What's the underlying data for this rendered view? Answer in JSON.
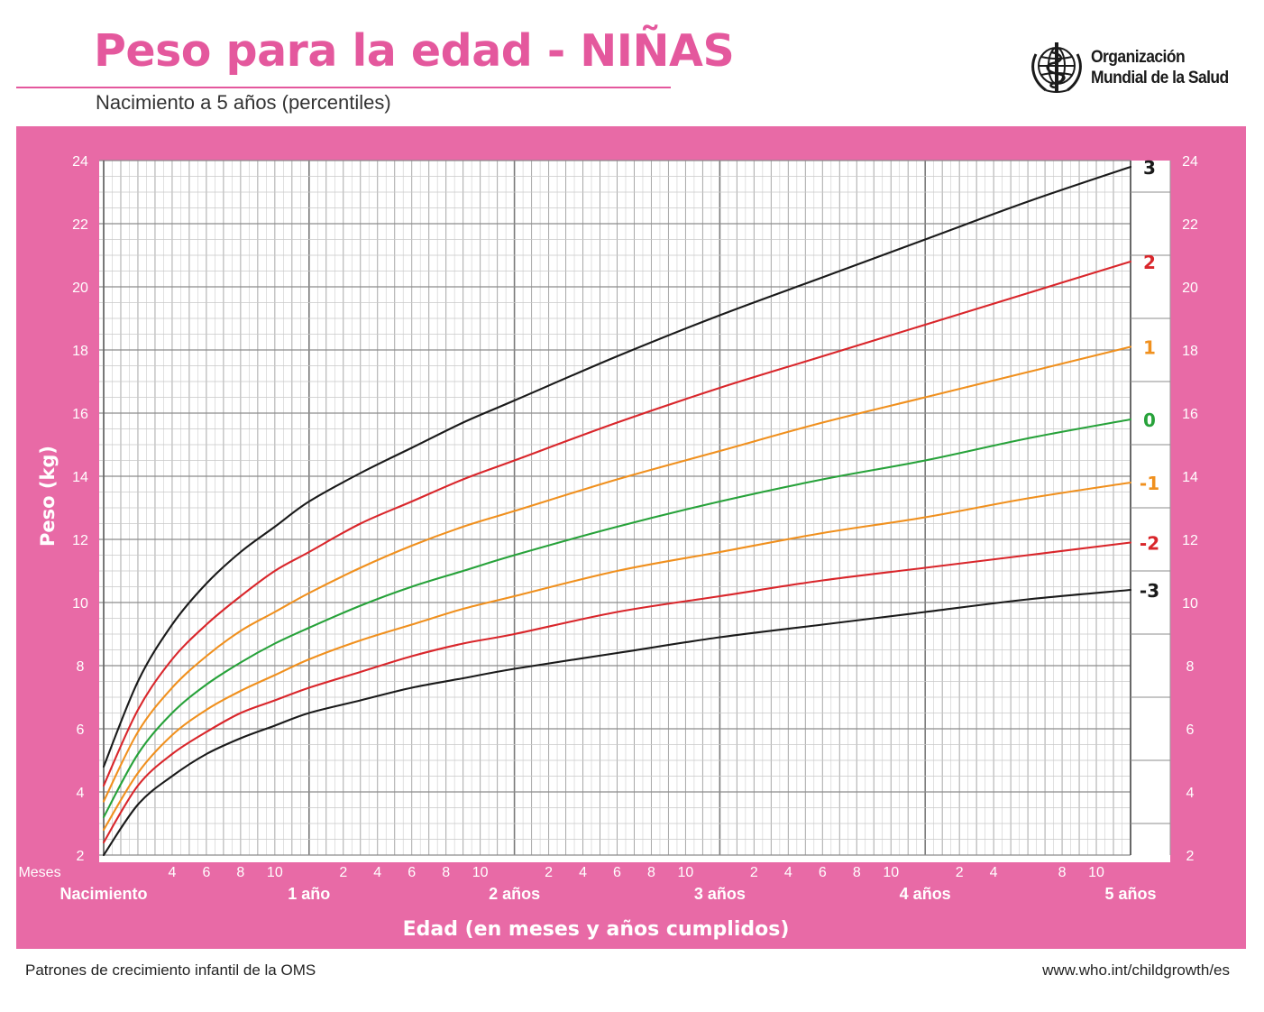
{
  "header": {
    "title": "Peso para la edad - NIÑAS",
    "subtitle": "Nacimiento a 5 años (percentiles)",
    "org_line1": "Organización",
    "org_line2": "Mundial de la Salud",
    "org_logo_icon": "who-emblem-icon"
  },
  "footer": {
    "left": "Patrones de crecimiento infantil de la OMS",
    "right": "www.who.int/childgrowth/es"
  },
  "colors": {
    "brand_pink": "#e4589d",
    "panel_pink": "#e86aa6",
    "curve_black": "#1a1a1a",
    "curve_red": "#d9262b",
    "curve_orange": "#f0901e",
    "curve_green": "#27a23a"
  },
  "chart_data": {
    "type": "line",
    "ylabel": "Peso (kg)",
    "xlabel": "Edad (en meses y años cumplidos)",
    "xlim": [
      0,
      60
    ],
    "ylim": [
      2,
      24
    ],
    "grid": true,
    "y_ticks_left": [
      "2",
      "4",
      "6",
      "8",
      "10",
      "12",
      "14",
      "16",
      "18",
      "20",
      "22",
      "24"
    ],
    "y_ticks_right": [
      "2",
      "4",
      "6",
      "8",
      "10",
      "12",
      "14",
      "16",
      "18",
      "20",
      "22",
      "24"
    ],
    "x_month_label": "Meses",
    "x_month_ticks": [
      {
        "month": 4,
        "label": "4"
      },
      {
        "month": 6,
        "label": "6"
      },
      {
        "month": 8,
        "label": "8"
      },
      {
        "month": 10,
        "label": "10"
      },
      {
        "month": 14,
        "label": "2"
      },
      {
        "month": 16,
        "label": "4"
      },
      {
        "month": 18,
        "label": "6"
      },
      {
        "month": 20,
        "label": "8"
      },
      {
        "month": 22,
        "label": "10"
      },
      {
        "month": 26,
        "label": "2"
      },
      {
        "month": 28,
        "label": "4"
      },
      {
        "month": 30,
        "label": "6"
      },
      {
        "month": 32,
        "label": "8"
      },
      {
        "month": 34,
        "label": "10"
      },
      {
        "month": 38,
        "label": "2"
      },
      {
        "month": 40,
        "label": "4"
      },
      {
        "month": 42,
        "label": "6"
      },
      {
        "month": 44,
        "label": "8"
      },
      {
        "month": 46,
        "label": "10"
      },
      {
        "month": 50,
        "label": "2"
      },
      {
        "month": 52,
        "label": "4"
      },
      {
        "month": 56,
        "label": "8"
      },
      {
        "month": 58,
        "label": "10"
      }
    ],
    "x_year_ticks": [
      {
        "month": 0,
        "label": "Nacimiento"
      },
      {
        "month": 12,
        "label": "1 año"
      },
      {
        "month": 24,
        "label": "2 años"
      },
      {
        "month": 36,
        "label": "3 años"
      },
      {
        "month": 48,
        "label": "4 años"
      },
      {
        "month": 60,
        "label": "5 años"
      }
    ],
    "x": [
      0,
      2,
      4,
      6,
      8,
      10,
      12,
      15,
      18,
      21,
      24,
      30,
      36,
      42,
      48,
      54,
      60
    ],
    "series": [
      {
        "name": "3",
        "color": "#1a1a1a",
        "values": [
          4.8,
          7.5,
          9.3,
          10.6,
          11.6,
          12.4,
          13.2,
          14.1,
          14.9,
          15.7,
          16.4,
          17.8,
          19.1,
          20.3,
          21.5,
          22.7,
          23.8
        ]
      },
      {
        "name": "2",
        "color": "#d9262b",
        "values": [
          4.2,
          6.6,
          8.2,
          9.3,
          10.2,
          11.0,
          11.6,
          12.5,
          13.2,
          13.9,
          14.5,
          15.7,
          16.8,
          17.8,
          18.8,
          19.8,
          20.8
        ]
      },
      {
        "name": "1",
        "color": "#f0901e",
        "values": [
          3.7,
          5.9,
          7.3,
          8.3,
          9.1,
          9.7,
          10.3,
          11.1,
          11.8,
          12.4,
          12.9,
          13.9,
          14.8,
          15.7,
          16.5,
          17.3,
          18.1
        ]
      },
      {
        "name": "0",
        "color": "#27a23a",
        "values": [
          3.2,
          5.2,
          6.5,
          7.4,
          8.1,
          8.7,
          9.2,
          9.9,
          10.5,
          11.0,
          11.5,
          12.4,
          13.2,
          13.9,
          14.5,
          15.2,
          15.8
        ]
      },
      {
        "name": "-1",
        "color": "#f0901e",
        "values": [
          2.8,
          4.6,
          5.8,
          6.6,
          7.2,
          7.7,
          8.2,
          8.8,
          9.3,
          9.8,
          10.2,
          11.0,
          11.6,
          12.2,
          12.7,
          13.3,
          13.8
        ]
      },
      {
        "name": "-2",
        "color": "#d9262b",
        "values": [
          2.4,
          4.2,
          5.2,
          5.9,
          6.5,
          6.9,
          7.3,
          7.8,
          8.3,
          8.7,
          9.0,
          9.7,
          10.2,
          10.7,
          11.1,
          11.5,
          11.9
        ]
      },
      {
        "name": "-3",
        "color": "#1a1a1a",
        "values": [
          2.0,
          3.6,
          4.5,
          5.2,
          5.7,
          6.1,
          6.5,
          6.9,
          7.3,
          7.6,
          7.9,
          8.4,
          8.9,
          9.3,
          9.7,
          10.1,
          10.4
        ]
      }
    ]
  }
}
